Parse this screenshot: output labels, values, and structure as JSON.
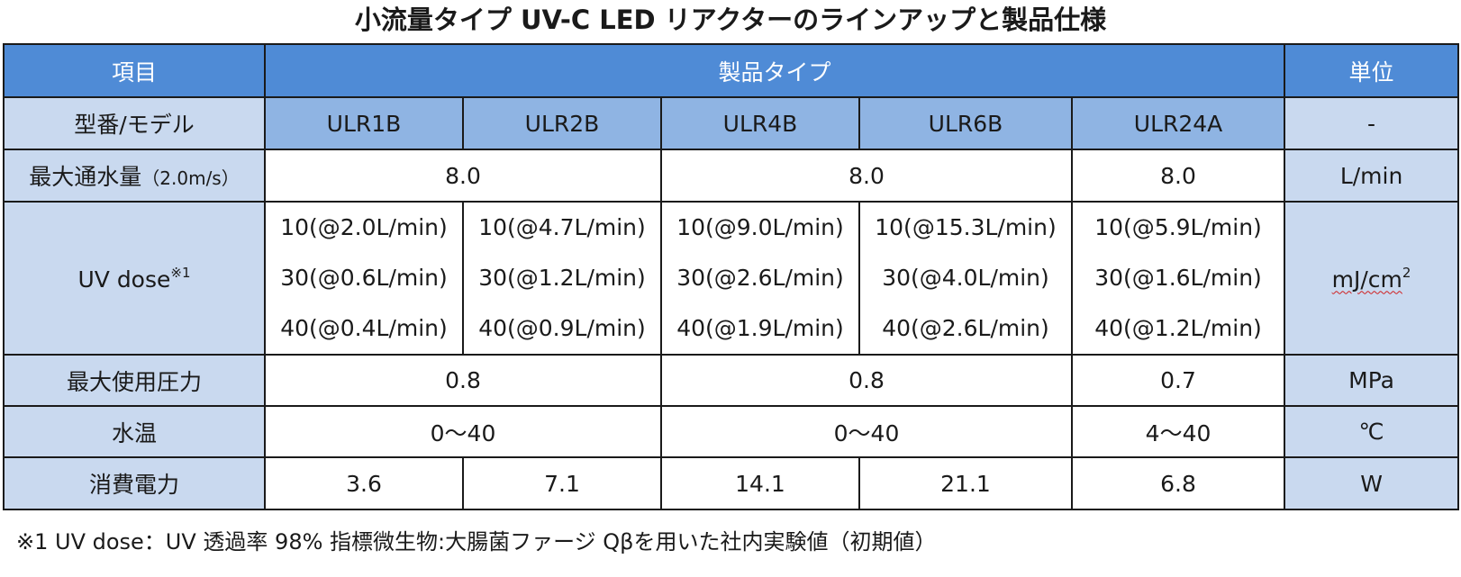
{
  "title": "小流量タイプ UV-C LED リアクターのラインアップと製品仕様",
  "header": {
    "item": "項目",
    "product_type": "製品タイプ",
    "unit": "単位"
  },
  "models_row": {
    "label": "型番/モデル",
    "models": [
      "ULR1B",
      "ULR2B",
      "ULR4B",
      "ULR6B",
      "ULR24A"
    ],
    "unit": "-"
  },
  "max_flow": {
    "label": "最大通水量",
    "label_sub": "（2.0m/s）",
    "values": [
      "8.0",
      "8.0",
      "8.0"
    ],
    "unit": "L/min"
  },
  "uv_dose": {
    "label": "UV dose",
    "note_mark": "※1",
    "columns": [
      [
        "10(@2.0L/min)",
        "30(@0.6L/min)",
        "40(@0.4L/min)"
      ],
      [
        "10(@4.7L/min)",
        "30(@1.2L/min)",
        "40(@0.9L/min)"
      ],
      [
        "10(@9.0L/min)",
        "30(@2.6L/min)",
        "40(@1.9L/min)"
      ],
      [
        "10(@15.3L/min)",
        "30(@4.0L/min)",
        "40(@2.6L/min)"
      ],
      [
        "10(@5.9L/min)",
        "30(@1.6L/min)",
        "40(@1.2L/min)"
      ]
    ],
    "unit_base": "mJ/cm",
    "unit_exp": "2"
  },
  "max_pressure": {
    "label": "最大使用圧力",
    "values": [
      "0.8",
      "0.8",
      "0.7"
    ],
    "unit": "MPa"
  },
  "water_temp": {
    "label": "水温",
    "values": [
      "0〜40",
      "0〜40",
      "4〜40"
    ],
    "unit": "℃"
  },
  "power": {
    "label": "消費電力",
    "values": [
      "3.6",
      "7.1",
      "14.1",
      "21.1",
      "6.8"
    ],
    "unit": "W"
  },
  "footnote": "※1 UV dose：UV 透過率 98%   指標微生物:大腸菌ファージ Qβを用いた社内実験値（初期値）",
  "colors": {
    "header_bg": "#4f8bd6",
    "model_bg": "#8fb4e3",
    "label_bg": "#c9d9ef",
    "border": "#1a1a1a"
  }
}
